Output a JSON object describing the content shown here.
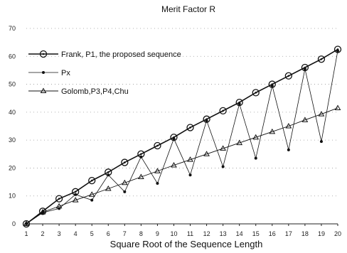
{
  "chart_data": {
    "type": "line",
    "title": "Merit Factor R",
    "xlabel": "Square Root of the Sequence Length",
    "ylabel": "",
    "x": [
      1,
      2,
      3,
      4,
      5,
      6,
      7,
      8,
      9,
      10,
      11,
      12,
      13,
      14,
      15,
      16,
      17,
      18,
      19,
      20
    ],
    "xlim": [
      1,
      20
    ],
    "ylim": [
      0,
      70
    ],
    "yticks": [
      0,
      10,
      20,
      30,
      40,
      50,
      60,
      70
    ],
    "grid": true,
    "legend_position": "upper-left",
    "series": [
      {
        "name": "Frank, P1, the proposed sequence",
        "marker": "circle",
        "values": [
          0,
          4.5,
          9,
          11.5,
          15.5,
          18.5,
          22,
          25,
          28,
          31,
          34.5,
          37.5,
          40.5,
          43.5,
          47,
          50,
          53,
          56,
          59,
          62.5
        ]
      },
      {
        "name": "Px",
        "marker": "dot",
        "values": [
          0,
          4,
          5.5,
          10.5,
          8.5,
          17.5,
          11.5,
          24,
          14.5,
          30.5,
          17.5,
          37,
          20.5,
          43,
          23.5,
          49.5,
          26.5,
          55.5,
          29.5,
          62
        ]
      },
      {
        "name": "Golomb,P3,P4,Chu",
        "marker": "triangle",
        "values": [
          0,
          4.2,
          6.3,
          8.5,
          10.5,
          12.6,
          14.7,
          16.8,
          18.9,
          21,
          23,
          25,
          27,
          29,
          31,
          33,
          35,
          37.2,
          39.3,
          41.5
        ]
      }
    ]
  }
}
